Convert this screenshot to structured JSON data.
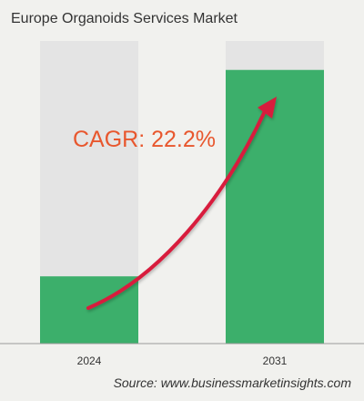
{
  "chart_data": {
    "type": "bar",
    "title": "Europe Organoids Services Market",
    "categories": [
      "2024",
      "2031"
    ],
    "values": [
      1,
      4.07
    ],
    "ylim": [
      0,
      4.5
    ],
    "grid": false,
    "annotation": "CAGR: 22.2%",
    "source": "Source: www.businessmarketinsights.com",
    "colors": {
      "bar": "#3caf6b",
      "bar_track": "#e4e4e4",
      "arrow": "#d81f3d",
      "annotation": "#e8572e",
      "background": "#f1f1ee"
    }
  }
}
